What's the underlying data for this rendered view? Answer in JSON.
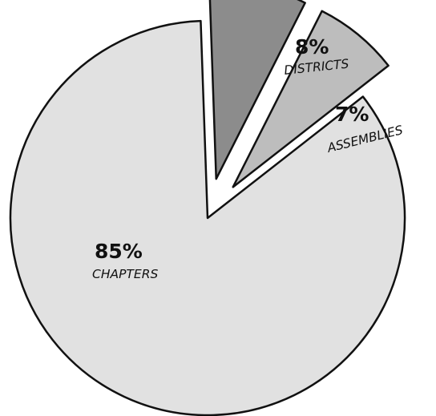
{
  "chart_data": {
    "type": "pie",
    "categories": [
      "CHAPTERS",
      "DISTRICTS",
      "ASSEMBLIES"
    ],
    "values": [
      85,
      8,
      7
    ],
    "labels": [
      "85%",
      "8%",
      "7%"
    ],
    "exploded": [
      "DISTRICTS",
      "ASSEMBLIES"
    ],
    "colors": [
      "#e1e1e1",
      "#8c8c8c",
      "#bdbdbd"
    ]
  }
}
